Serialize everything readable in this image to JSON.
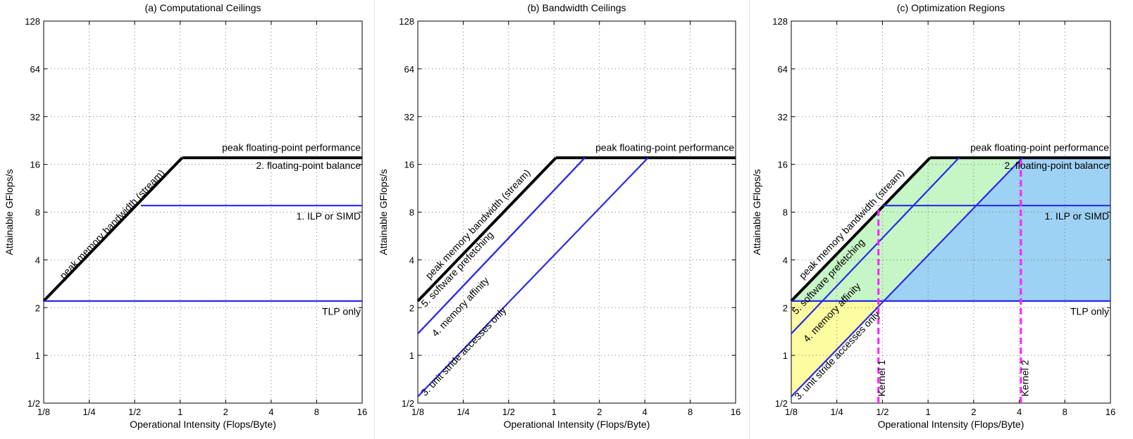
{
  "x_ticks": [
    "1/8",
    "1/4",
    "1/2",
    "1",
    "2",
    "4",
    "8",
    "16"
  ],
  "y_ticks": [
    "1/2",
    "1",
    "2",
    "4",
    "8",
    "16",
    "32",
    "64",
    "128"
  ],
  "chart_data": [
    {
      "type": "line",
      "title": "(a) Computational Ceilings",
      "xlabel": "Operational Intensity (Flops/Byte)",
      "ylabel": "Attainable GFlops/s",
      "xscale": "log2",
      "yscale": "log2",
      "xlim": [
        0.125,
        16
      ],
      "ylim": [
        0.5,
        128
      ],
      "grid": true,
      "series": [
        {
          "name": "peak memory bandwidth (stream)",
          "color": "#000000",
          "x": [
            0.125,
            1.03
          ],
          "y": [
            2.2,
            17.6
          ]
        },
        {
          "name": "peak floating-point performance",
          "color": "#000000",
          "x": [
            1.03,
            16
          ],
          "y": [
            17.6,
            17.6
          ]
        },
        {
          "name": "1. ILP or SIMD",
          "color": "#2a2ae8",
          "x": [
            0.55,
            16
          ],
          "y": [
            8.8,
            8.8
          ]
        },
        {
          "name": "TLP only",
          "color": "#2a2ae8",
          "x": [
            0.125,
            16
          ],
          "y": [
            2.2,
            2.2
          ]
        }
      ],
      "annotations": [
        {
          "text": "peak memory bandwidth (stream)",
          "x": 0.17,
          "y": 3.0
        },
        {
          "text": "peak floating-point performance",
          "x": 16,
          "y": 19.5
        },
        {
          "text": "2. floating-point balance",
          "x": 16,
          "y": 15.0
        },
        {
          "text": "1. ILP or SIMD",
          "x": 16,
          "y": 7.2
        },
        {
          "text": "TLP only",
          "x": 16,
          "y": 1.8
        }
      ]
    },
    {
      "type": "line",
      "title": "(b) Bandwidth Ceilings",
      "xlabel": "Operational Intensity (Flops/Byte)",
      "ylabel": "Attainable GFlops/s",
      "xscale": "log2",
      "yscale": "log2",
      "xlim": [
        0.125,
        16
      ],
      "ylim": [
        0.5,
        128
      ],
      "grid": true,
      "series": [
        {
          "name": "peak memory bandwidth (stream)",
          "color": "#000000",
          "x": [
            0.125,
            1.03
          ],
          "y": [
            2.2,
            17.6
          ]
        },
        {
          "name": "peak floating-point performance",
          "color": "#000000",
          "x": [
            1.03,
            16
          ],
          "y": [
            17.6,
            17.6
          ]
        },
        {
          "name": "5. software prefetching",
          "color": "#2a2ae8",
          "x": [
            0.125,
            1.6
          ],
          "y": [
            1.37,
            17.6
          ]
        },
        {
          "name": "4. memory affinity",
          "color": "#2a2ae8",
          "x": [
            0.125,
            1.6
          ],
          "y": [
            1.37,
            17.6
          ]
        },
        {
          "name": "3. unit stride accesses only",
          "color": "#2a2ae8",
          "x": [
            0.125,
            4.2
          ],
          "y": [
            0.55,
            17.6
          ]
        }
      ],
      "annotations": [
        {
          "text": "peak memory bandwidth (stream)",
          "x": 0.15,
          "y": 3.0
        },
        {
          "text": "peak floating-point performance",
          "x": 16,
          "y": 19.5
        },
        {
          "text": "5. software prefetching",
          "x": 0.14,
          "y": 2.0
        },
        {
          "text": "4. memory affinity",
          "x": 0.165,
          "y": 1.3
        },
        {
          "text": "3. unit stride accesses only",
          "x": 0.14,
          "y": 0.55
        }
      ]
    },
    {
      "type": "line",
      "title": "(c) Optimization Regions",
      "xlabel": "Operational Intensity (Flops/Byte)",
      "ylabel": "Attainable GFlops/s",
      "xscale": "log2",
      "yscale": "log2",
      "xlim": [
        0.125,
        16
      ],
      "ylim": [
        0.5,
        128
      ],
      "grid": true,
      "series": [
        {
          "name": "peak memory bandwidth (stream)",
          "color": "#000000",
          "x": [
            0.125,
            1.03
          ],
          "y": [
            2.2,
            17.6
          ]
        },
        {
          "name": "peak floating-point performance",
          "color": "#000000",
          "x": [
            1.03,
            16
          ],
          "y": [
            17.6,
            17.6
          ]
        },
        {
          "name": "1. ILP or SIMD",
          "color": "#2a2ae8",
          "x": [
            0.5,
            16
          ],
          "y": [
            8.8,
            8.8
          ]
        },
        {
          "name": "TLP only",
          "color": "#2a2ae8",
          "x": [
            0.125,
            16
          ],
          "y": [
            2.2,
            2.2
          ]
        },
        {
          "name": "5. software prefetching",
          "color": "#2a2ae8",
          "x": [
            0.125,
            1.6
          ],
          "y": [
            1.37,
            17.6
          ]
        },
        {
          "name": "3. unit stride accesses only",
          "color": "#2a2ae8",
          "x": [
            0.125,
            4.2
          ],
          "y": [
            0.55,
            17.6
          ]
        },
        {
          "name": "Kernel 1",
          "color": "#ff22ff",
          "dashed": true,
          "x": [
            0.47,
            0.47
          ],
          "y": [
            0.5,
            8.8
          ]
        },
        {
          "name": "Kernel 2",
          "color": "#ff22ff",
          "dashed": true,
          "x": [
            4.1,
            4.1
          ],
          "y": [
            0.5,
            17.6
          ]
        }
      ],
      "regions": [
        {
          "color": "#fcfca0",
          "points": [
            [
              0.125,
              0.5
            ],
            [
              0.125,
              2.2
            ],
            [
              0.5,
              2.2
            ],
            [
              0.125,
              0.55
            ]
          ]
        },
        {
          "color": "#c6f5c6",
          "points": [
            [
              0.125,
              2.2
            ],
            [
              1.03,
              17.6
            ],
            [
              4.2,
              17.6
            ],
            [
              0.5,
              2.2
            ]
          ]
        },
        {
          "color": "#9ed2f4",
          "points": [
            [
              0.5,
              2.2
            ],
            [
              4.2,
              17.6
            ],
            [
              16,
              17.6
            ],
            [
              16,
              2.2
            ]
          ]
        }
      ],
      "annotations": [
        {
          "text": "peak memory bandwidth (stream)",
          "x": 0.15,
          "y": 3.0
        },
        {
          "text": "peak floating-point performance",
          "x": 16,
          "y": 19.5
        },
        {
          "text": "2. floating-point balance",
          "x": 16,
          "y": 15.0
        },
        {
          "text": "1. ILP or SIMD",
          "x": 16,
          "y": 7.2
        },
        {
          "text": "TLP only",
          "x": 16,
          "y": 1.8
        },
        {
          "text": "5. software prefetching",
          "x": 0.135,
          "y": 1.8
        },
        {
          "text": "4. memory affinity",
          "x": 0.16,
          "y": 1.2
        },
        {
          "text": "3. unit stride accesses only",
          "x": 0.14,
          "y": 0.52
        },
        {
          "text": "Kernel 1",
          "x": 0.52,
          "y": 0.55
        },
        {
          "text": "Kernel 2",
          "x": 4.6,
          "y": 0.55
        }
      ]
    }
  ]
}
